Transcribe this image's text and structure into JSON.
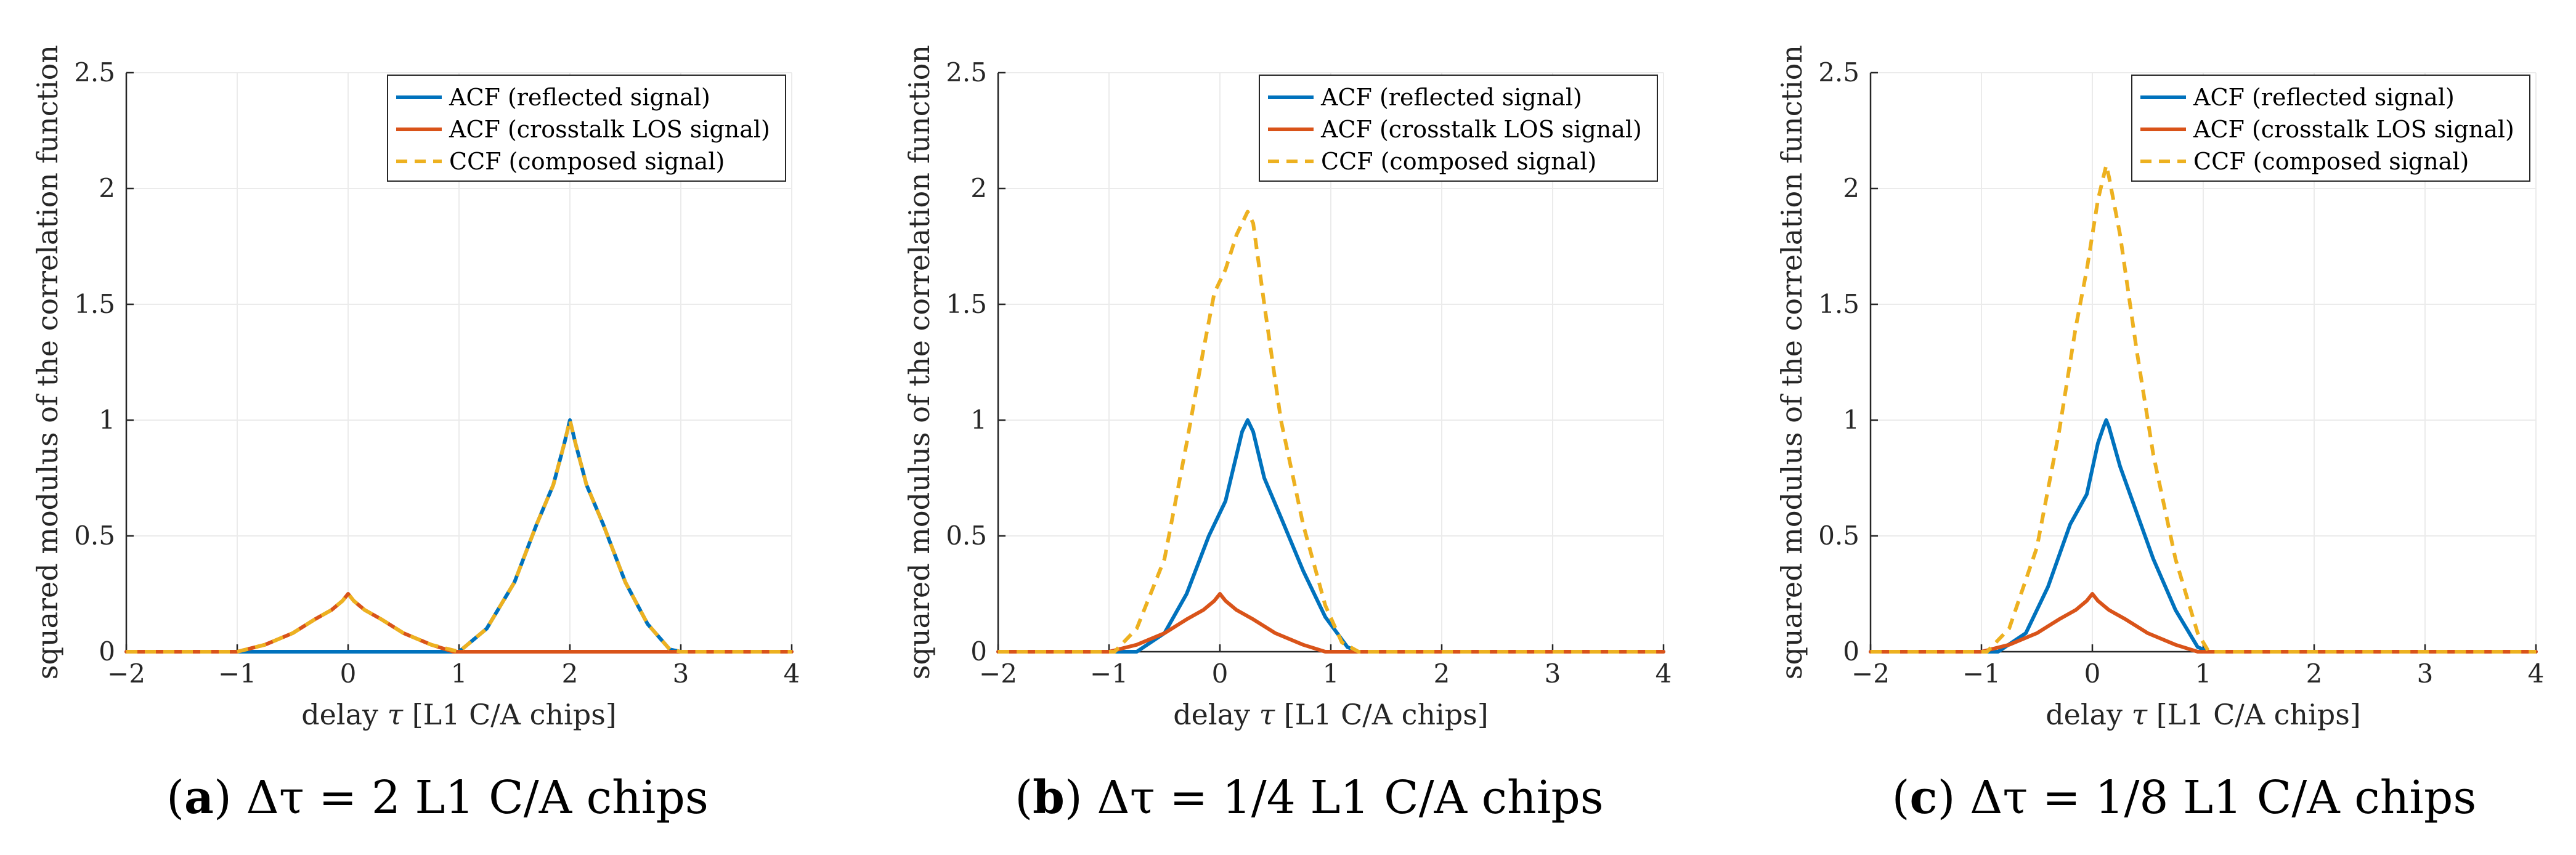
{
  "colors": {
    "reflected": "#0072BD",
    "crosstalk": "#D95319",
    "composed": "#EDB120",
    "axis": "#262626",
    "grid": "#ebebeb"
  },
  "shared": {
    "xlabel_prefix": "delay",
    "xlabel_symbol": "τ",
    "xlabel_suffix": "[L1 C/A chips]",
    "ylabel": "squared modulus of the correlation function",
    "legend": [
      "ACF (reflected signal)",
      "ACF (crosstalk LOS signal)",
      "CCF (composed signal)"
    ]
  },
  "chart_data": [
    {
      "type": "line",
      "xlim": [
        -2,
        4
      ],
      "ylim": [
        0,
        2.5
      ],
      "xticks": [
        "−2",
        "−1",
        "0",
        "1",
        "2",
        "3",
        "4"
      ],
      "yticks": [
        "0",
        "0.5",
        "1",
        "1.5",
        "2",
        "2.5"
      ],
      "caption": {
        "label": "(a)",
        "pre": "Δτ = ",
        "num": "2",
        "post": " L1 C/A chips"
      },
      "series": [
        {
          "name": "ACF (reflected signal)",
          "x": [
            -2,
            1,
            1.25,
            1.5,
            1.7,
            1.85,
            1.95,
            2.0,
            2.05,
            2.15,
            2.3,
            2.5,
            2.7,
            2.9,
            3,
            4
          ],
          "y": [
            0,
            0,
            0.1,
            0.3,
            0.55,
            0.72,
            0.9,
            1.0,
            0.9,
            0.72,
            0.55,
            0.3,
            0.12,
            0.01,
            0,
            0
          ]
        },
        {
          "name": "ACF (crosstalk LOS signal)",
          "x": [
            -2,
            -1,
            -0.75,
            -0.5,
            -0.3,
            -0.15,
            -0.05,
            0.0,
            0.05,
            0.15,
            0.3,
            0.5,
            0.75,
            0.95,
            1,
            4
          ],
          "y": [
            0,
            0,
            0.03,
            0.08,
            0.14,
            0.18,
            0.22,
            0.25,
            0.22,
            0.18,
            0.14,
            0.08,
            0.03,
            0.0,
            0,
            0
          ]
        },
        {
          "name": "CCF (composed signal)",
          "x": [
            -2,
            -1,
            -0.75,
            -0.5,
            -0.3,
            -0.15,
            -0.05,
            0.0,
            0.05,
            0.15,
            0.3,
            0.5,
            0.75,
            1,
            1.25,
            1.5,
            1.7,
            1.85,
            1.95,
            2.0,
            2.05,
            2.15,
            2.3,
            2.5,
            2.7,
            2.9,
            3,
            4
          ],
          "y": [
            0,
            0,
            0.03,
            0.08,
            0.14,
            0.18,
            0.22,
            0.25,
            0.22,
            0.18,
            0.14,
            0.08,
            0.03,
            0,
            0.1,
            0.3,
            0.55,
            0.72,
            0.9,
            1.0,
            0.9,
            0.72,
            0.55,
            0.3,
            0.12,
            0.01,
            0,
            0
          ]
        }
      ]
    },
    {
      "type": "line",
      "xlim": [
        -2,
        4
      ],
      "ylim": [
        0,
        2.5
      ],
      "xticks": [
        "−2",
        "−1",
        "0",
        "1",
        "2",
        "3",
        "4"
      ],
      "yticks": [
        "0",
        "0.5",
        "1",
        "1.5",
        "2",
        "2.5"
      ],
      "caption": {
        "label": "(b)",
        "pre": "Δτ = ",
        "num": "1/4",
        "post": " L1 C/A chips"
      },
      "series": [
        {
          "name": "ACF (reflected signal)",
          "x": [
            -2,
            -0.75,
            -0.5,
            -0.3,
            -0.1,
            0.05,
            0.15,
            0.2,
            0.25,
            0.3,
            0.4,
            0.55,
            0.75,
            0.95,
            1.15,
            1.25,
            4
          ],
          "y": [
            0,
            0,
            0.08,
            0.25,
            0.5,
            0.65,
            0.85,
            0.95,
            1.0,
            0.95,
            0.75,
            0.58,
            0.35,
            0.15,
            0.02,
            0,
            0
          ]
        },
        {
          "name": "ACF (crosstalk LOS signal)",
          "x": [
            -2,
            -1,
            -0.75,
            -0.5,
            -0.3,
            -0.15,
            -0.05,
            0.0,
            0.05,
            0.15,
            0.3,
            0.5,
            0.75,
            0.95,
            1,
            4
          ],
          "y": [
            0,
            0,
            0.03,
            0.08,
            0.14,
            0.18,
            0.22,
            0.25,
            0.22,
            0.18,
            0.14,
            0.08,
            0.03,
            0.0,
            0,
            0
          ]
        },
        {
          "name": "CCF (composed signal)",
          "x": [
            -2,
            -0.95,
            -0.75,
            -0.5,
            -0.3,
            -0.15,
            -0.05,
            0.0,
            0.05,
            0.15,
            0.25,
            0.3,
            0.4,
            0.55,
            0.75,
            0.95,
            1.1,
            1.25,
            4
          ],
          "y": [
            0,
            0,
            0.1,
            0.4,
            0.9,
            1.3,
            1.55,
            1.6,
            1.65,
            1.8,
            1.9,
            1.85,
            1.5,
            1.0,
            0.55,
            0.2,
            0.04,
            0,
            0
          ]
        }
      ]
    },
    {
      "type": "line",
      "xlim": [
        -2,
        4
      ],
      "ylim": [
        0,
        2.5
      ],
      "xticks": [
        "−2",
        "−1",
        "0",
        "1",
        "2",
        "3",
        "4"
      ],
      "yticks": [
        "0",
        "0.5",
        "1",
        "1.5",
        "2",
        "2.5"
      ],
      "caption": {
        "label": "(c)",
        "pre": "Δτ = ",
        "num": "1/8",
        "post": " L1 C/A chips"
      },
      "series": [
        {
          "name": "ACF (reflected signal)",
          "x": [
            -2,
            -0.85,
            -0.6,
            -0.4,
            -0.2,
            -0.05,
            0.05,
            0.1,
            0.125,
            0.15,
            0.25,
            0.4,
            0.55,
            0.75,
            0.95,
            1.05,
            4
          ],
          "y": [
            0,
            0,
            0.08,
            0.28,
            0.55,
            0.68,
            0.9,
            0.97,
            1.0,
            0.97,
            0.8,
            0.6,
            0.4,
            0.18,
            0.02,
            0,
            0
          ]
        },
        {
          "name": "ACF (crosstalk LOS signal)",
          "x": [
            -2,
            -1,
            -0.75,
            -0.5,
            -0.3,
            -0.15,
            -0.05,
            0.0,
            0.05,
            0.15,
            0.3,
            0.5,
            0.75,
            0.95,
            1,
            4
          ],
          "y": [
            0,
            0,
            0.03,
            0.08,
            0.14,
            0.18,
            0.22,
            0.25,
            0.22,
            0.18,
            0.14,
            0.08,
            0.03,
            0.0,
            0,
            0
          ]
        },
        {
          "name": "CCF (composed signal)",
          "x": [
            -2,
            -0.95,
            -0.75,
            -0.5,
            -0.3,
            -0.15,
            -0.05,
            0.05,
            0.1,
            0.125,
            0.15,
            0.25,
            0.4,
            0.55,
            0.75,
            0.95,
            1.05,
            4
          ],
          "y": [
            0,
            0,
            0.1,
            0.45,
            0.95,
            1.4,
            1.65,
            1.95,
            2.05,
            2.1,
            2.05,
            1.8,
            1.3,
            0.85,
            0.4,
            0.08,
            0,
            0
          ]
        }
      ]
    }
  ]
}
